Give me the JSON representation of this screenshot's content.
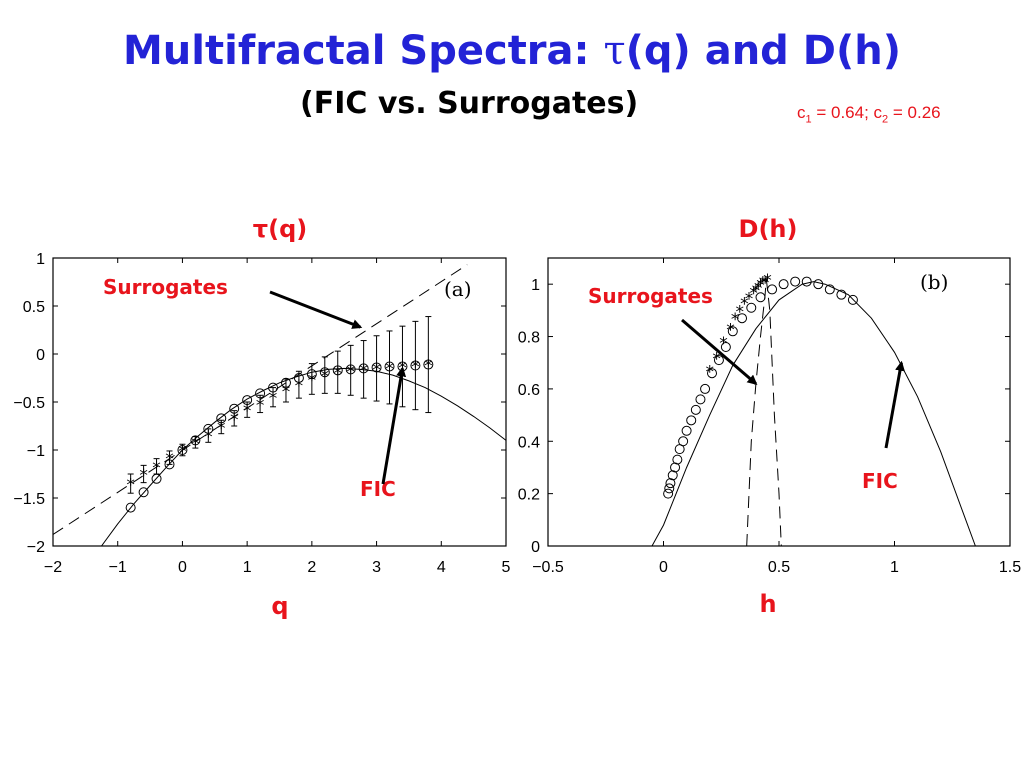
{
  "slide": {
    "title_prefix": "Multifractal Spectra: ",
    "title_tau": "τ",
    "title_suffix": "(q) and D(h)",
    "subtitle": "(FIC vs. Surrogates)",
    "params": {
      "c1_sym": "c",
      "c1_sub": "1",
      "c1_val": " = 0.64; ",
      "c2_sym": "c",
      "c2_sub": "2",
      "c2_val": " = 0.26"
    }
  },
  "colors": {
    "title": "#2323d6",
    "annotation": "#e8141c",
    "axis": "#000000",
    "plot_bg": "#ffffff"
  },
  "chart_data": [
    {
      "type": "scatter",
      "panel_heading": "τ(q)",
      "panel_tag": "(a)",
      "xlabel": "q",
      "ylabel": "",
      "xlim": [
        -2,
        5
      ],
      "ylim": [
        -2,
        1
      ],
      "xticks": [
        -2,
        -1,
        0,
        1,
        2,
        3,
        4,
        5
      ],
      "xtick_labels": [
        "−2",
        "−1",
        "0",
        "1",
        "2",
        "3",
        "4",
        "5"
      ],
      "yticks": [
        1,
        0.5,
        0,
        -0.5,
        -1,
        -1.5,
        -2
      ],
      "ytick_labels": [
        "1",
        "0.5",
        "0",
        "−0.5",
        "−1",
        "−1.5",
        "−2"
      ],
      "grid": false,
      "annotations": [
        {
          "text": "Surrogates",
          "points_to": [
            2.75,
            0.28
          ]
        },
        {
          "text": "FIC",
          "points_to": [
            3.4,
            -0.15
          ]
        }
      ],
      "series": [
        {
          "marker": "circle",
          "x": [
            -0.8,
            -0.6,
            -0.4,
            -0.2,
            0.0,
            0.2,
            0.4,
            0.6,
            0.8,
            1.0,
            1.2,
            1.4,
            1.6,
            1.8,
            2.0,
            2.2,
            2.4,
            2.6,
            2.8,
            3.0,
            3.2,
            3.4,
            3.6,
            3.8
          ],
          "y": [
            -1.6,
            -1.44,
            -1.3,
            -1.15,
            -1.0,
            -0.9,
            -0.78,
            -0.67,
            -0.57,
            -0.48,
            -0.41,
            -0.35,
            -0.3,
            -0.25,
            -0.21,
            -0.19,
            -0.17,
            -0.16,
            -0.15,
            -0.14,
            -0.13,
            -0.13,
            -0.12,
            -0.11
          ]
        },
        {
          "marker": "star",
          "x": [
            -0.8,
            -0.6,
            -0.4,
            -0.2,
            0.0,
            0.2,
            0.4,
            0.6,
            0.8,
            1.0,
            1.2,
            1.4,
            1.6,
            1.8,
            2.0,
            2.2,
            2.4,
            2.6,
            2.8,
            3.0,
            3.2,
            3.4,
            3.6,
            3.8
          ],
          "y": [
            -1.35,
            -1.25,
            -1.17,
            -1.08,
            -1.0,
            -0.92,
            -0.85,
            -0.76,
            -0.67,
            -0.58,
            -0.52,
            -0.45,
            -0.38,
            -0.32,
            -0.26,
            -0.22,
            -0.19,
            -0.17,
            -0.16,
            -0.15,
            -0.14,
            -0.13,
            -0.12,
            -0.11
          ],
          "err": [
            0.1,
            0.09,
            0.08,
            0.07,
            0.06,
            0.06,
            0.07,
            0.07,
            0.08,
            0.08,
            0.09,
            0.1,
            0.12,
            0.14,
            0.16,
            0.19,
            0.22,
            0.26,
            0.3,
            0.34,
            0.38,
            0.42,
            0.46,
            0.5
          ]
        },
        {
          "style": "solid-line",
          "x": [
            -1.25,
            -1.0,
            -0.75,
            -0.5,
            -0.25,
            0.0,
            0.25,
            0.5,
            0.75,
            1.0,
            1.25,
            1.5,
            1.75,
            2.0,
            2.25,
            2.5,
            2.75,
            3.0,
            3.25,
            3.5,
            3.75,
            4.0,
            4.25,
            4.5,
            4.75,
            5.0
          ],
          "y": [
            -2.0,
            -1.77,
            -1.56,
            -1.37,
            -1.18,
            -1.0,
            -0.85,
            -0.71,
            -0.58,
            -0.47,
            -0.38,
            -0.3,
            -0.24,
            -0.19,
            -0.16,
            -0.15,
            -0.16,
            -0.18,
            -0.22,
            -0.28,
            -0.35,
            -0.44,
            -0.54,
            -0.65,
            -0.77,
            -0.9
          ]
        },
        {
          "style": "dashed-line",
          "x": [
            -2.0,
            4.4
          ],
          "y": [
            -1.88,
            0.93
          ]
        }
      ]
    },
    {
      "type": "scatter",
      "panel_heading": "D(h)",
      "panel_tag": "(b)",
      "xlabel": "h",
      "ylabel": "",
      "xlim": [
        -0.5,
        1.5
      ],
      "ylim": [
        0,
        1.1
      ],
      "xticks": [
        -0.5,
        0,
        0.5,
        1,
        1.5
      ],
      "xtick_labels": [
        "−0.5",
        "0",
        "0.5",
        "1",
        "1.5"
      ],
      "yticks": [
        0,
        0.2,
        0.4,
        0.6,
        0.8,
        1
      ],
      "ytick_labels": [
        "0",
        "0.2",
        "0.4",
        "0.6",
        "0.8",
        "1"
      ],
      "grid": false,
      "annotations": [
        {
          "text": "Surrogates",
          "points_to": [
            0.4,
            0.62
          ]
        },
        {
          "text": "FIC",
          "points_to": [
            1.03,
            0.7
          ]
        }
      ],
      "series": [
        {
          "marker": "circle",
          "x": [
            0.02,
            0.025,
            0.03,
            0.04,
            0.05,
            0.06,
            0.07,
            0.085,
            0.1,
            0.12,
            0.14,
            0.16,
            0.18,
            0.21,
            0.24,
            0.27,
            0.3,
            0.34,
            0.38,
            0.42,
            0.47,
            0.52,
            0.57,
            0.62,
            0.67,
            0.72,
            0.77,
            0.82
          ],
          "y": [
            0.2,
            0.22,
            0.24,
            0.27,
            0.3,
            0.33,
            0.37,
            0.4,
            0.44,
            0.48,
            0.52,
            0.56,
            0.6,
            0.66,
            0.71,
            0.76,
            0.82,
            0.87,
            0.91,
            0.95,
            0.98,
            1.0,
            1.01,
            1.01,
            1.0,
            0.98,
            0.96,
            0.94
          ]
        },
        {
          "marker": "star",
          "x": [
            0.2,
            0.23,
            0.26,
            0.29,
            0.31,
            0.33,
            0.35,
            0.37,
            0.39,
            0.4,
            0.41,
            0.42,
            0.43,
            0.44,
            0.45
          ],
          "y": [
            0.67,
            0.72,
            0.78,
            0.83,
            0.87,
            0.9,
            0.93,
            0.95,
            0.97,
            0.98,
            0.99,
            1.0,
            1.01,
            1.01,
            1.02
          ]
        },
        {
          "style": "solid-line",
          "x": [
            -0.05,
            0.0,
            0.1,
            0.2,
            0.3,
            0.4,
            0.5,
            0.6,
            0.65,
            0.7,
            0.8,
            0.9,
            1.0,
            1.1,
            1.2,
            1.3,
            1.35
          ],
          "y": [
            0.0,
            0.08,
            0.3,
            0.5,
            0.69,
            0.83,
            0.94,
            1.0,
            1.01,
            1.0,
            0.96,
            0.87,
            0.74,
            0.57,
            0.36,
            0.12,
            0.0
          ]
        },
        {
          "style": "dashed-line",
          "x": [
            0.36,
            0.37,
            0.38,
            0.4,
            0.42,
            0.44,
            0.445
          ],
          "y": [
            0.0,
            0.2,
            0.4,
            0.62,
            0.8,
            0.96,
            1.02
          ]
        },
        {
          "style": "dashed-line",
          "x": [
            0.445,
            0.46,
            0.47,
            0.48,
            0.5,
            0.51
          ],
          "y": [
            1.02,
            0.9,
            0.7,
            0.5,
            0.2,
            0.0
          ]
        }
      ]
    }
  ]
}
